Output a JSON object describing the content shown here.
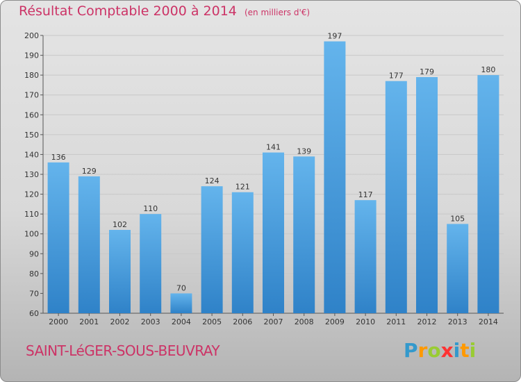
{
  "header": {
    "title": "Résultat Comptable 2000 à 2014",
    "unit": "(en milliers d'€)"
  },
  "footer": {
    "commune": "SAINT-LéGER-SOUS-BEUVRAY",
    "logo_letters": [
      "P",
      "r",
      "o",
      "x",
      "i",
      "t",
      "i"
    ]
  },
  "colors": {
    "title": "#cc3366",
    "bar_light": "#64b4ec",
    "bar_dark": "#2f82c8",
    "logo": [
      "#3399cc",
      "#ff9900",
      "#99cc33",
      "#ff3333",
      "#3399cc",
      "#ff9900",
      "#99cc33"
    ]
  },
  "chart_data": {
    "type": "bar",
    "categories": [
      "2000",
      "2001",
      "2002",
      "2003",
      "2004",
      "2005",
      "2006",
      "2007",
      "2008",
      "2009",
      "2010",
      "2011",
      "2012",
      "2013",
      "2014"
    ],
    "values": [
      136,
      129,
      102,
      110,
      70,
      124,
      121,
      141,
      139,
      197,
      117,
      177,
      179,
      105,
      180
    ],
    "ylim": [
      60,
      200
    ],
    "yticks": [
      60,
      70,
      80,
      90,
      100,
      110,
      120,
      130,
      140,
      150,
      160,
      170,
      180,
      190,
      200
    ],
    "grid": true
  }
}
